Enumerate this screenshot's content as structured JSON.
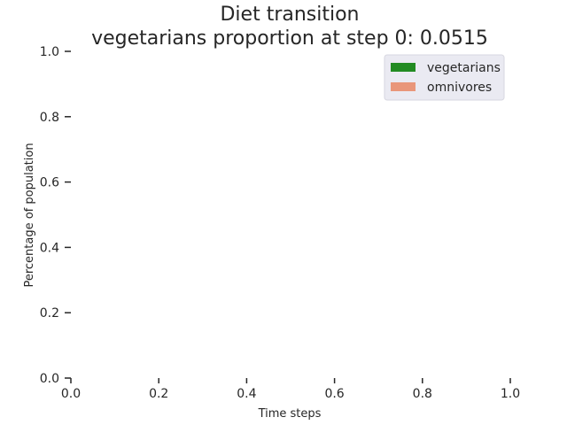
{
  "chart_data": {
    "type": "area",
    "title": "Diet transition",
    "subtitle": "vegetarians proportion at step 0: 0.0515",
    "xlabel": "Time steps",
    "ylabel": "Percentage of population",
    "xlim": [
      0,
      1
    ],
    "ylim": [
      0,
      1
    ],
    "x_ticks": [
      "0.0",
      "0.2",
      "0.4",
      "0.6",
      "0.8",
      "1.0"
    ],
    "y_ticks": [
      "0.0",
      "0.2",
      "0.4",
      "0.6",
      "0.8",
      "1.0"
    ],
    "grid": false,
    "legend_position": "top-right",
    "x": [],
    "series": [
      {
        "name": "vegetarians",
        "color": "#228b22",
        "values": []
      },
      {
        "name": "omnivores",
        "color": "#e9967a",
        "values": []
      }
    ]
  }
}
